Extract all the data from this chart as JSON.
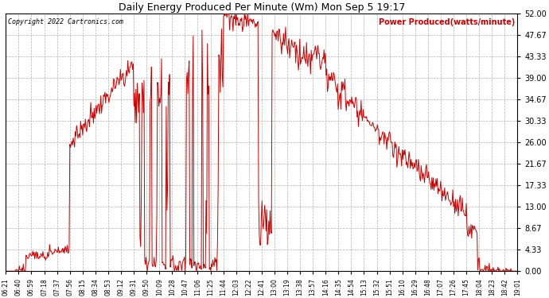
{
  "title": "Daily Energy Produced Per Minute (Wm) Mon Sep 5 19:17",
  "copyright": "Copyright 2022 Cartronics.com",
  "legend_label": "Power Produced(watts/minute)",
  "yticks": [
    0.0,
    4.33,
    8.67,
    13.0,
    17.33,
    21.67,
    26.0,
    30.33,
    34.67,
    39.0,
    43.33,
    47.67,
    52.0
  ],
  "ymax": 52.0,
  "ymin": 0.0,
  "line_color": "#cc0000",
  "bg_color": "#ffffff",
  "grid_color": "#b0b0b0",
  "title_color": "#000000",
  "copyright_color": "#000000",
  "legend_color": "#cc0000",
  "x_tick_labels": [
    "06:21",
    "06:40",
    "06:59",
    "07:18",
    "07:37",
    "07:56",
    "08:15",
    "08:34",
    "08:53",
    "09:12",
    "09:31",
    "09:50",
    "10:09",
    "10:28",
    "10:47",
    "11:06",
    "11:25",
    "11:44",
    "12:03",
    "12:22",
    "12:41",
    "13:00",
    "13:19",
    "13:38",
    "13:57",
    "14:16",
    "14:35",
    "14:54",
    "15:13",
    "15:32",
    "15:51",
    "16:10",
    "16:29",
    "16:48",
    "17:07",
    "17:26",
    "17:45",
    "18:04",
    "18:23",
    "18:42",
    "19:01"
  ]
}
